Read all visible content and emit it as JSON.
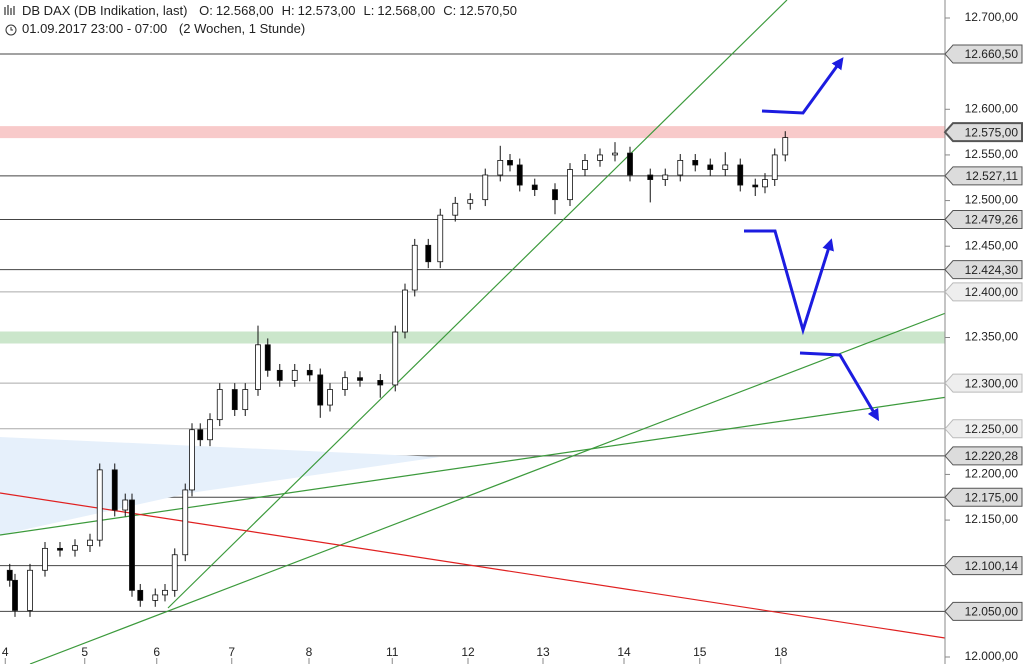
{
  "chart_data": {
    "type": "candlestick",
    "title": "DB DAX (DB Indikation, last)",
    "quote": [
      {
        "label": "O:",
        "value": "12.568,00"
      },
      {
        "label": "H:",
        "value": "12.573,00"
      },
      {
        "label": "L:",
        "value": "12.568,00"
      },
      {
        "label": "C:",
        "value": "12.570,50"
      }
    ],
    "subtitle": "01.09.2017 23:00 - 07:00",
    "period": "(2 Wochen, 1 Stunde)",
    "up_color": "#ffffff",
    "down_color": "#000000",
    "ylim": [
      12000,
      12700
    ],
    "yticks": [
      {
        "value": 12000,
        "label": "12.000,00"
      },
      {
        "value": 12050,
        "label": "12.050,00"
      },
      {
        "value": 12150,
        "label": "12.150,00"
      },
      {
        "value": 12200,
        "label": "12.200,00"
      },
      {
        "value": 12250,
        "label": "12.250,00"
      },
      {
        "value": 12300,
        "label": "12.300,00"
      },
      {
        "value": 12350,
        "label": "12.350,00"
      },
      {
        "value": 12400,
        "label": "12.400,00"
      },
      {
        "value": 12450,
        "label": "12.450,00"
      },
      {
        "value": 12500,
        "label": "12.500,00"
      },
      {
        "value": 12550,
        "label": "12.550,00"
      },
      {
        "value": 12600,
        "label": "12.600,00"
      },
      {
        "value": 12700,
        "label": "12.700,00"
      }
    ],
    "xlim": [
      0,
      126
    ],
    "xticks": [
      {
        "value": 0.7,
        "label": "4"
      },
      {
        "value": 11.3,
        "label": "5"
      },
      {
        "value": 20.9,
        "label": "6"
      },
      {
        "value": 30.9,
        "label": "7"
      },
      {
        "value": 41.2,
        "label": "8"
      },
      {
        "value": 52.3,
        "label": "11"
      },
      {
        "value": 62.4,
        "label": "12"
      },
      {
        "value": 72.4,
        "label": "13"
      },
      {
        "value": 83.2,
        "label": "14"
      },
      {
        "value": 93.3,
        "label": "15"
      },
      {
        "value": 104.1,
        "label": "18"
      }
    ],
    "levels": [
      {
        "value": 12660.5,
        "label": "12.660,50",
        "color": "#444444"
      },
      {
        "value": 12575,
        "label": "12.575,00",
        "color": "#f4a6a6",
        "band": true
      },
      {
        "value": 12527.11,
        "label": "12.527,11",
        "color": "#444444"
      },
      {
        "value": 12479.26,
        "label": "12.479,26",
        "color": "#444444"
      },
      {
        "value": 12424.3,
        "label": "12.424,30",
        "color": "#444444"
      },
      {
        "value": 12400,
        "label": "12.400,00",
        "color": "#aaaaaa"
      },
      {
        "value": 12350,
        "color": "#a9d6a9",
        "band": true
      },
      {
        "value": 12300,
        "label": "12.300,00",
        "color": "#aaaaaa"
      },
      {
        "value": 12250,
        "label": "12.250,00",
        "color": "#aaaaaa"
      },
      {
        "value": 12220.28,
        "label": "12.220,28",
        "color": "#444444"
      },
      {
        "value": 12175,
        "label": "12.175,00",
        "color": "#444444"
      },
      {
        "value": 12100.14,
        "label": "12.100,14",
        "color": "#444444"
      },
      {
        "value": 12050,
        "label": "12.050,00",
        "color": "#444444"
      }
    ],
    "x": [
      1.3,
      2,
      4,
      6,
      8,
      10,
      12,
      13.3,
      15.3,
      16.7,
      17.6,
      18.7,
      20.7,
      22,
      23.3,
      24.7,
      25.6,
      26.7,
      28,
      29.3,
      31.3,
      32.7,
      34.4,
      35.7,
      37.3,
      39.3,
      41.3,
      42.7,
      44,
      46,
      48,
      50.7,
      52.7,
      54,
      55.3,
      57.1,
      58.7,
      60.7,
      62.7,
      64.7,
      66.7,
      68,
      69.3,
      71.3,
      74,
      76,
      78,
      80,
      82,
      84,
      86.7,
      88.7,
      90.7,
      92.7,
      94.7,
      96.7,
      98.7,
      100.7,
      102,
      103.3,
      104.7
    ],
    "open": [
      12095,
      12084,
      12051,
      12095,
      12119,
      12117,
      12122,
      12128,
      12205,
      12161,
      12172,
      12073,
      12062,
      12068,
      12073,
      12112,
      12183,
      12249,
      12238,
      12260,
      12293,
      12271,
      12293,
      12342,
      12314,
      12303,
      12314,
      12309,
      12276,
      12293,
      12306,
      12303,
      12298,
      12356,
      12402,
      12451,
      12433,
      12484,
      12497,
      12501,
      12528,
      12544,
      12539,
      12517,
      12512,
      12501,
      12534,
      12544,
      12550,
      12552,
      12528,
      12523,
      12528,
      12544,
      12539,
      12534,
      12539,
      12517,
      12515,
      12523,
      12550
    ],
    "high": [
      12102,
      12091,
      12102,
      12126,
      12126,
      12129,
      12135,
      12212,
      12212,
      12179,
      12179,
      12080,
      12075,
      12080,
      12119,
      12190,
      12256,
      12256,
      12267,
      12300,
      12300,
      12300,
      12363,
      12349,
      12321,
      12321,
      12321,
      12316,
      12300,
      12313,
      12313,
      12310,
      12363,
      12409,
      12458,
      12458,
      12491,
      12504,
      12508,
      12535,
      12560,
      12551,
      12546,
      12524,
      12519,
      12541,
      12551,
      12557,
      12564,
      12559,
      12535,
      12535,
      12551,
      12551,
      12546,
      12553,
      12546,
      12524,
      12530,
      12557,
      12576
    ],
    "low": [
      12077,
      12044,
      12044,
      12088,
      12110,
      12110,
      12115,
      12121,
      12154,
      12154,
      12066,
      12055,
      12055,
      12061,
      12066,
      12105,
      12176,
      12231,
      12231,
      12253,
      12264,
      12264,
      12286,
      12307,
      12296,
      12296,
      12302,
      12262,
      12269,
      12286,
      12296,
      12284,
      12291,
      12349,
      12395,
      12426,
      12426,
      12477,
      12490,
      12494,
      12521,
      12532,
      12510,
      12505,
      12485,
      12494,
      12527,
      12537,
      12543,
      12521,
      12498,
      12516,
      12521,
      12532,
      12527,
      12527,
      12510,
      12505,
      12508,
      12516,
      12543
    ],
    "close": [
      12084,
      12051,
      12095,
      12119,
      12117,
      12122,
      12128,
      12205,
      12161,
      12172,
      12073,
      12062,
      12068,
      12073,
      12112,
      12183,
      12249,
      12238,
      12260,
      12293,
      12271,
      12293,
      12342,
      12314,
      12303,
      12314,
      12309,
      12276,
      12293,
      12306,
      12303,
      12298,
      12356,
      12402,
      12451,
      12433,
      12484,
      12497,
      12501,
      12528,
      12544,
      12539,
      12517,
      12512,
      12501,
      12534,
      12544,
      12550,
      12552,
      12528,
      12523,
      12528,
      12544,
      12539,
      12534,
      12539,
      12517,
      12515,
      12523,
      12550,
      12569
    ]
  }
}
